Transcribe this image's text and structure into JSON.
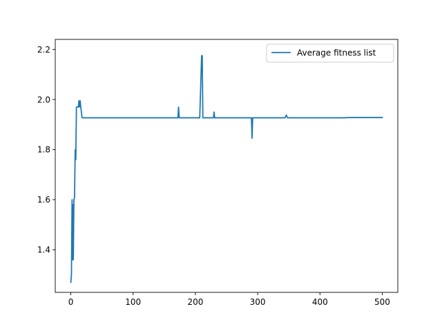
{
  "chart_data": {
    "type": "line",
    "title": "",
    "xlabel": "",
    "ylabel": "",
    "xlim": [
      -25,
      525
    ],
    "ylim": [
      1.23,
      2.24
    ],
    "x_ticks": [
      0,
      100,
      200,
      300,
      400,
      500
    ],
    "x_tick_labels": [
      "0",
      "100",
      "200",
      "300",
      "400",
      "500"
    ],
    "y_ticks": [
      1.4,
      1.6,
      1.8,
      2.0,
      2.2
    ],
    "y_tick_labels": [
      "1.4",
      "1.6",
      "1.8",
      "2.0",
      "2.2"
    ],
    "grid": false,
    "legend_position": "top-right",
    "series": [
      {
        "name": "Average fitness list",
        "color": "#1f77b4",
        "points": [
          [
            0,
            1.27
          ],
          [
            1,
            1.3
          ],
          [
            2,
            1.6
          ],
          [
            2.5,
            1.36
          ],
          [
            3,
            1.58
          ],
          [
            4,
            1.36
          ],
          [
            5,
            1.6
          ],
          [
            6,
            1.61
          ],
          [
            7,
            1.8
          ],
          [
            8,
            1.76
          ],
          [
            9,
            1.97
          ],
          [
            10,
            1.97
          ],
          [
            11,
            1.97
          ],
          [
            12,
            1.97
          ],
          [
            13,
            1.995
          ],
          [
            14,
            1.97
          ],
          [
            15,
            1.995
          ],
          [
            16,
            1.97
          ],
          [
            17,
            1.95
          ],
          [
            18,
            1.927
          ],
          [
            172,
            1.927
          ],
          [
            173,
            1.97
          ],
          [
            174,
            1.927
          ],
          [
            207,
            1.927
          ],
          [
            210,
            2.175
          ],
          [
            211,
            2.175
          ],
          [
            212,
            1.927
          ],
          [
            229,
            1.927
          ],
          [
            230,
            1.95
          ],
          [
            231,
            1.927
          ],
          [
            290,
            1.927
          ],
          [
            291,
            1.845
          ],
          [
            292,
            1.927
          ],
          [
            344,
            1.927
          ],
          [
            346,
            1.938
          ],
          [
            348,
            1.927
          ],
          [
            440,
            1.927
          ],
          [
            445,
            1.928
          ],
          [
            500,
            1.928
          ]
        ]
      }
    ]
  }
}
